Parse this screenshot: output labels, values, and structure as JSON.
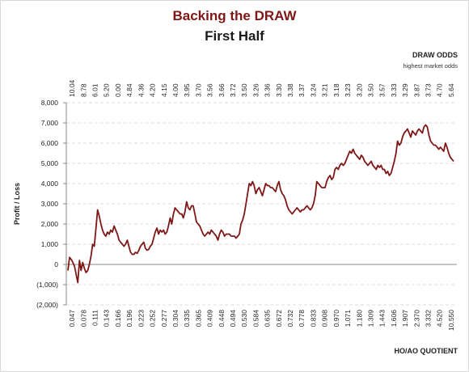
{
  "title": "Backing the DRAW",
  "subtitle": "First Half",
  "odds_axis_title": "DRAW ODDS",
  "odds_axis_subtitle": "highest market odds",
  "x_axis_title": "HO/AO QUOTIENT",
  "y_axis_title": "Profit / Loss",
  "colors": {
    "line": "#7f1717",
    "title": "#7f1717",
    "negative_tick": "#c00000",
    "grid": "#d4d4d4"
  },
  "chart_data": {
    "type": "line",
    "title": "Backing the DRAW",
    "subtitle": "First Half",
    "xlabel": "HO/AO QUOTIENT",
    "ylabel": "Profit / Loss",
    "secondary_xlabel": "DRAW ODDS",
    "ylim": [
      -2000,
      8000
    ],
    "y_ticks": [
      {
        "value": 8000,
        "label": "8,000"
      },
      {
        "value": 7000,
        "label": "7,000"
      },
      {
        "value": 6000,
        "label": "6,000"
      },
      {
        "value": 5000,
        "label": "5,000"
      },
      {
        "value": 4000,
        "label": "4,000"
      },
      {
        "value": 3000,
        "label": "3,000"
      },
      {
        "value": 2000,
        "label": "2,000"
      },
      {
        "value": 1000,
        "label": "1,000"
      },
      {
        "value": 0,
        "label": "0"
      },
      {
        "value": -1000,
        "label": "(1,000)"
      },
      {
        "value": -2000,
        "label": "(2,000)"
      }
    ],
    "grid": true,
    "x_tick_labels": [
      "0.047",
      "0.078",
      "0.111",
      "0.143",
      "0.166",
      "0.196",
      "0.223",
      "0.252",
      "0.277",
      "0.304",
      "0.335",
      "0.365",
      "0.409",
      "0.448",
      "0.494",
      "0.530",
      "0.584",
      "0.635",
      "0.672",
      "0.732",
      "0.778",
      "0.833",
      "0.908",
      "0.970",
      "1.071",
      "1.180",
      "1.309",
      "1.443",
      "1.606",
      "1.907",
      "2.370",
      "3.332",
      "4.520",
      "10.550"
    ],
    "top_tick_labels": [
      "10.04",
      "8.78",
      "6.01",
      "5.20",
      "0.00",
      "4.84",
      "4.36",
      "4.20",
      "4.15",
      "4.00",
      "3.95",
      "3.70",
      "3.56",
      "3.66",
      "3.72",
      "3.50",
      "3.26",
      "3.36",
      "3.30",
      "3.38",
      "3.37",
      "3.24",
      "3.21",
      "3.18",
      "3.23",
      "3.20",
      "3.50",
      "3.57",
      "3.33",
      "3.29",
      "3.87",
      "3.73",
      "4.70",
      "5.64"
    ],
    "series": [
      {
        "values": [
          -300,
          350,
          250,
          100,
          -100,
          -500,
          -900,
          200,
          -300,
          100,
          -200,
          -400,
          -300,
          0,
          400,
          1000,
          900,
          1800,
          2700,
          2400,
          2000,
          1700,
          1500,
          1400,
          1600,
          1500,
          1700,
          1600,
          1900,
          1700,
          1500,
          1200,
          1100,
          1000,
          900,
          1000,
          1200,
          900,
          600,
          500,
          500,
          600,
          550,
          700,
          900,
          1000,
          1100,
          800,
          700,
          750,
          900,
          1000,
          1300,
          1600,
          1800,
          1500,
          1700,
          1600,
          1700,
          1500,
          1600,
          1900,
          2300,
          2000,
          2500,
          2800,
          2700,
          2600,
          2500,
          2500,
          2300,
          2600,
          3100,
          2800,
          2700,
          2900,
          2900,
          2500,
          2100,
          2000,
          1900,
          1700,
          1500,
          1400,
          1500,
          1600,
          1500,
          1700,
          1600,
          1500,
          1400,
          1200,
          1500,
          1700,
          1600,
          1400,
          1500,
          1500,
          1500,
          1400,
          1400,
          1400,
          1300,
          1400,
          1500,
          2000,
          2200,
          2500,
          3000,
          3500,
          4000,
          3900,
          4100,
          3900,
          3500,
          3700,
          3800,
          3600,
          3400,
          3700,
          4000,
          3900,
          3900,
          3800,
          3800,
          3700,
          3600,
          3900,
          4100,
          3700,
          3500,
          3400,
          3200,
          2900,
          2700,
          2600,
          2500,
          2600,
          2700,
          2800,
          2700,
          2600,
          2700,
          2700,
          2800,
          2900,
          2800,
          2700,
          2800,
          3000,
          3400,
          4100,
          4000,
          3900,
          3800,
          3800,
          3800,
          4100,
          4300,
          4400,
          4200,
          4300,
          4700,
          4800,
          4700,
          4900,
          5000,
          4900,
          5000,
          5200,
          5400,
          5600,
          5500,
          5700,
          5500,
          5400,
          5300,
          5200,
          5400,
          5300,
          5100,
          5000,
          4900,
          5000,
          5100,
          4900,
          4800,
          4700,
          4900,
          4800,
          4900,
          4700,
          4700,
          4500,
          4600,
          4400,
          4500,
          4800,
          5100,
          5500,
          6100,
          5900,
          6000,
          6300,
          6500,
          6600,
          6700,
          6500,
          6300,
          6600,
          6500,
          6400,
          6600,
          6700,
          6600,
          6500,
          6800,
          6900,
          6800,
          6400,
          6100,
          6000,
          5900,
          5900,
          5800,
          5700,
          5800,
          5700,
          5600,
          6000,
          5800,
          5500,
          5300,
          5200,
          5100
        ]
      }
    ]
  }
}
